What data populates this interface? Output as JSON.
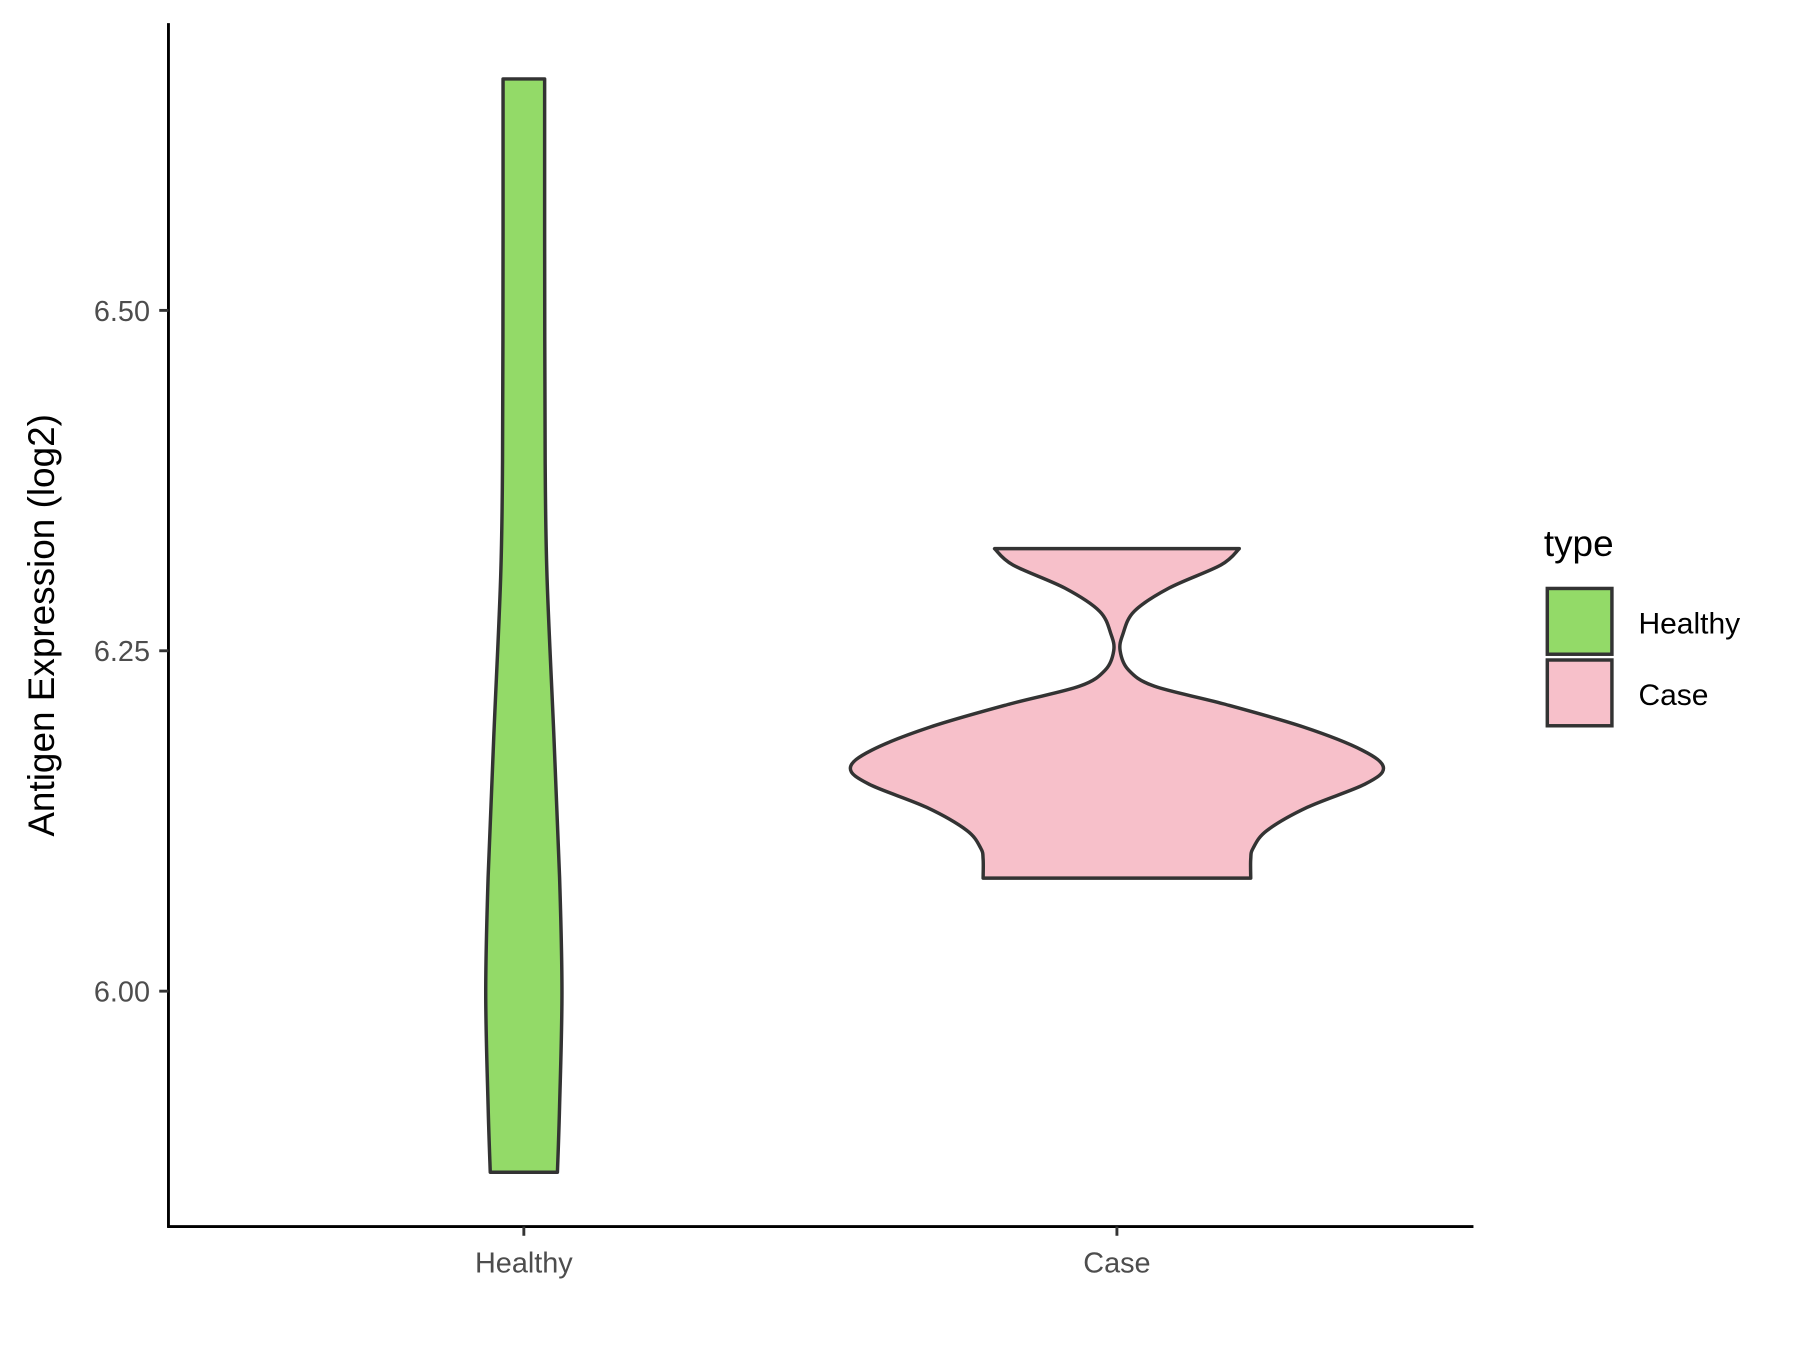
{
  "chart_data": {
    "type": "violin",
    "title": "",
    "xlabel": "",
    "ylabel": "Antigen Expression (log2)",
    "categories": [
      "Healthy",
      "Case"
    ],
    "yticks": [
      "6.00",
      "6.25",
      "6.50"
    ],
    "ytick_values": [
      6.0,
      6.25,
      6.5
    ],
    "ylim": [
      5.827,
      6.71
    ],
    "grid": false,
    "legend": {
      "title": "type",
      "position": "right",
      "entries": [
        "Healthy",
        "Case"
      ]
    },
    "colors": {
      "Healthy": "#93DA68",
      "Case": "#F7C0CA",
      "outline": "#333333"
    },
    "series": [
      {
        "name": "Healthy",
        "min": 5.867,
        "max": 6.67,
        "profile_values": [
          6.67,
          6.558,
          6.389,
          6.304,
          6.186,
          6.084,
          5.999,
          5.915,
          5.867
        ],
        "profile_relative_width": [
          0.078,
          0.078,
          0.08,
          0.087,
          0.113,
          0.134,
          0.143,
          0.134,
          0.126
        ]
      },
      {
        "name": "Case",
        "min": 6.083,
        "max": 6.325,
        "profile_values": [
          6.325,
          6.313,
          6.296,
          6.279,
          6.262,
          6.25,
          6.236,
          6.224,
          6.211,
          6.194,
          6.177,
          6.164,
          6.152,
          6.135,
          6.118,
          6.105,
          6.097,
          6.083
        ],
        "profile_relative_width": [
          0.459,
          0.39,
          0.195,
          0.065,
          0.022,
          0.012,
          0.043,
          0.14,
          0.4,
          0.7,
          0.92,
          1.0,
          0.93,
          0.714,
          0.563,
          0.511,
          0.502,
          0.502
        ]
      }
    ]
  }
}
